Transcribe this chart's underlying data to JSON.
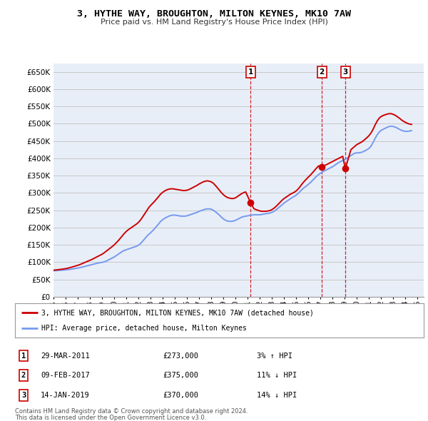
{
  "title": "3, HYTHE WAY, BROUGHTON, MILTON KEYNES, MK10 7AW",
  "subtitle": "Price paid vs. HM Land Registry's House Price Index (HPI)",
  "hpi_label": "HPI: Average price, detached house, Milton Keynes",
  "price_label": "3, HYTHE WAY, BROUGHTON, MILTON KEYNES, MK10 7AW (detached house)",
  "footnote1": "Contains HM Land Registry data © Crown copyright and database right 2024.",
  "footnote2": "This data is licensed under the Open Government Licence v3.0.",
  "background_color": "#ffffff",
  "plot_bg_color": "#e8eef8",
  "grid_color": "#c8c8c8",
  "hpi_color": "#7799ee",
  "price_color": "#cc0000",
  "sale_marker_color": "#cc0000",
  "vline_color": "#cc0000",
  "ylim": [
    0,
    675000
  ],
  "yticks": [
    0,
    50000,
    100000,
    150000,
    200000,
    250000,
    300000,
    350000,
    400000,
    450000,
    500000,
    550000,
    600000,
    650000
  ],
  "sales": [
    {
      "label": "1",
      "date": "29-MAR-2011",
      "price": 273000,
      "x_year": 2011.23,
      "hpi_pct": "3% ↑ HPI"
    },
    {
      "label": "2",
      "date": "09-FEB-2017",
      "price": 375000,
      "x_year": 2017.11,
      "hpi_pct": "11% ↓ HPI"
    },
    {
      "label": "3",
      "date": "14-JAN-2019",
      "price": 370000,
      "x_year": 2019.04,
      "hpi_pct": "14% ↓ HPI"
    }
  ],
  "hpi_data_x": [
    1995.0,
    1995.08,
    1995.17,
    1995.25,
    1995.33,
    1995.42,
    1995.5,
    1995.58,
    1995.67,
    1995.75,
    1995.83,
    1995.92,
    1996.0,
    1996.08,
    1996.17,
    1996.25,
    1996.33,
    1996.42,
    1996.5,
    1996.58,
    1996.67,
    1996.75,
    1996.83,
    1996.92,
    1997.0,
    1997.08,
    1997.17,
    1997.25,
    1997.33,
    1997.42,
    1997.5,
    1997.58,
    1997.67,
    1997.75,
    1997.83,
    1997.92,
    1998.0,
    1998.17,
    1998.33,
    1998.5,
    1998.67,
    1998.83,
    1999.0,
    1999.17,
    1999.33,
    1999.5,
    1999.67,
    1999.83,
    2000.0,
    2000.17,
    2000.33,
    2000.5,
    2000.67,
    2000.83,
    2001.0,
    2001.17,
    2001.33,
    2001.5,
    2001.67,
    2001.83,
    2002.0,
    2002.17,
    2002.33,
    2002.5,
    2002.67,
    2002.83,
    2003.0,
    2003.17,
    2003.33,
    2003.5,
    2003.67,
    2003.83,
    2004.0,
    2004.17,
    2004.33,
    2004.5,
    2004.67,
    2004.83,
    2005.0,
    2005.17,
    2005.33,
    2005.5,
    2005.67,
    2005.83,
    2006.0,
    2006.17,
    2006.33,
    2006.5,
    2006.67,
    2006.83,
    2007.0,
    2007.17,
    2007.33,
    2007.5,
    2007.67,
    2007.83,
    2008.0,
    2008.17,
    2008.33,
    2008.5,
    2008.67,
    2008.83,
    2009.0,
    2009.17,
    2009.33,
    2009.5,
    2009.67,
    2009.83,
    2010.0,
    2010.17,
    2010.33,
    2010.5,
    2010.67,
    2010.83,
    2011.0,
    2011.17,
    2011.33,
    2011.5,
    2011.67,
    2011.83,
    2012.0,
    2012.17,
    2012.33,
    2012.5,
    2012.67,
    2012.83,
    2013.0,
    2013.17,
    2013.33,
    2013.5,
    2013.67,
    2013.83,
    2014.0,
    2014.17,
    2014.33,
    2014.5,
    2014.67,
    2014.83,
    2015.0,
    2015.17,
    2015.33,
    2015.5,
    2015.67,
    2015.83,
    2016.0,
    2016.17,
    2016.33,
    2016.5,
    2016.67,
    2016.83,
    2017.0,
    2017.17,
    2017.33,
    2017.5,
    2017.67,
    2017.83,
    2018.0,
    2018.17,
    2018.33,
    2018.5,
    2018.67,
    2018.83,
    2019.0,
    2019.17,
    2019.33,
    2019.5,
    2019.67,
    2019.83,
    2020.0,
    2020.17,
    2020.33,
    2020.5,
    2020.67,
    2020.83,
    2021.0,
    2021.17,
    2021.33,
    2021.5,
    2021.67,
    2021.83,
    2022.0,
    2022.17,
    2022.33,
    2022.5,
    2022.67,
    2022.83,
    2023.0,
    2023.17,
    2023.33,
    2023.5,
    2023.67,
    2023.83,
    2024.0,
    2024.17,
    2024.33,
    2024.5
  ],
  "hpi_data_y": [
    75000,
    75200,
    75400,
    75600,
    75800,
    76000,
    76200,
    76500,
    76800,
    77000,
    77200,
    77500,
    77800,
    78100,
    78400,
    78700,
    79000,
    79500,
    80000,
    80500,
    81000,
    81500,
    82000,
    82500,
    83000,
    83500,
    84200,
    85000,
    85800,
    86500,
    87200,
    88000,
    88800,
    89500,
    90200,
    91000,
    91800,
    93000,
    94500,
    96000,
    97500,
    98500,
    99500,
    101000,
    103000,
    106000,
    109000,
    112000,
    115000,
    119000,
    123000,
    127000,
    131000,
    134000,
    136000,
    138000,
    140000,
    142000,
    144000,
    146000,
    149000,
    154000,
    160000,
    167000,
    174000,
    180000,
    185000,
    191000,
    197000,
    204000,
    211000,
    218000,
    223000,
    227000,
    230000,
    233000,
    235000,
    236000,
    236000,
    235000,
    234000,
    233000,
    233000,
    233000,
    234000,
    236000,
    238000,
    240000,
    242000,
    244000,
    247000,
    249000,
    251000,
    253000,
    254000,
    254000,
    253000,
    250000,
    246000,
    241000,
    236000,
    230000,
    225000,
    221000,
    219000,
    218000,
    218000,
    219000,
    221000,
    224000,
    227000,
    230000,
    232000,
    233000,
    234000,
    235000,
    236000,
    237000,
    237000,
    237000,
    237000,
    238000,
    239000,
    240000,
    241000,
    242000,
    244000,
    247000,
    251000,
    256000,
    261000,
    266000,
    271000,
    275000,
    279000,
    283000,
    287000,
    290000,
    294000,
    299000,
    305000,
    311000,
    316000,
    320000,
    325000,
    330000,
    336000,
    342000,
    348000,
    353000,
    357000,
    361000,
    364000,
    367000,
    370000,
    373000,
    376000,
    380000,
    384000,
    388000,
    391000,
    394000,
    397000,
    400000,
    404000,
    408000,
    412000,
    415000,
    416000,
    416000,
    417000,
    419000,
    422000,
    425000,
    429000,
    436000,
    446000,
    458000,
    468000,
    476000,
    481000,
    484000,
    487000,
    490000,
    492000,
    493000,
    492000,
    490000,
    487000,
    484000,
    481000,
    479000,
    478000,
    478000,
    479000,
    480000
  ],
  "price_data_x": [
    1995.0,
    1995.08,
    1995.17,
    1995.25,
    1995.33,
    1995.42,
    1995.5,
    1995.58,
    1995.67,
    1995.75,
    1995.83,
    1995.92,
    1996.0,
    1996.17,
    1996.33,
    1996.5,
    1996.67,
    1996.83,
    1997.0,
    1997.17,
    1997.33,
    1997.5,
    1997.67,
    1997.83,
    1998.0,
    1998.17,
    1998.33,
    1998.5,
    1998.67,
    1998.83,
    1999.0,
    1999.17,
    1999.33,
    1999.5,
    1999.67,
    1999.83,
    2000.0,
    2000.17,
    2000.33,
    2000.5,
    2000.67,
    2000.83,
    2001.0,
    2001.17,
    2001.33,
    2001.5,
    2001.67,
    2001.83,
    2002.0,
    2002.17,
    2002.33,
    2002.5,
    2002.67,
    2002.83,
    2003.0,
    2003.17,
    2003.33,
    2003.5,
    2003.67,
    2003.83,
    2004.0,
    2004.17,
    2004.33,
    2004.5,
    2004.67,
    2004.83,
    2005.0,
    2005.17,
    2005.33,
    2005.5,
    2005.67,
    2005.83,
    2006.0,
    2006.17,
    2006.33,
    2006.5,
    2006.67,
    2006.83,
    2007.0,
    2007.17,
    2007.33,
    2007.5,
    2007.67,
    2007.83,
    2008.0,
    2008.17,
    2008.33,
    2008.5,
    2008.67,
    2008.83,
    2009.0,
    2009.17,
    2009.33,
    2009.5,
    2009.67,
    2009.83,
    2010.0,
    2010.17,
    2010.33,
    2010.5,
    2010.67,
    2010.83,
    2011.23,
    2011.5,
    2011.67,
    2011.83,
    2012.0,
    2012.17,
    2012.33,
    2012.5,
    2012.67,
    2012.83,
    2013.0,
    2013.17,
    2013.33,
    2013.5,
    2013.67,
    2013.83,
    2014.0,
    2014.17,
    2014.33,
    2014.5,
    2014.67,
    2014.83,
    2015.0,
    2015.17,
    2015.33,
    2015.5,
    2015.67,
    2015.83,
    2016.0,
    2016.17,
    2016.33,
    2016.5,
    2016.67,
    2016.83,
    2017.11,
    2017.5,
    2017.67,
    2017.83,
    2018.0,
    2018.17,
    2018.33,
    2018.5,
    2018.67,
    2018.83,
    2019.04,
    2019.5,
    2019.67,
    2019.83,
    2020.0,
    2020.17,
    2020.33,
    2020.5,
    2020.67,
    2020.83,
    2021.0,
    2021.17,
    2021.33,
    2021.5,
    2021.67,
    2021.83,
    2022.0,
    2022.17,
    2022.33,
    2022.5,
    2022.67,
    2022.83,
    2023.0,
    2023.17,
    2023.33,
    2023.5,
    2023.67,
    2023.83,
    2024.0,
    2024.17,
    2024.33,
    2024.5
  ],
  "price_data_y": [
    77000,
    77200,
    77500,
    77800,
    78100,
    78400,
    78800,
    79200,
    79600,
    80000,
    80400,
    80900,
    81400,
    82500,
    84000,
    85700,
    87400,
    89100,
    91000,
    93000,
    95500,
    98000,
    100500,
    103000,
    105500,
    108000,
    111000,
    114000,
    117000,
    120000,
    123000,
    127000,
    131500,
    136000,
    140500,
    145000,
    150000,
    156000,
    162000,
    169000,
    176000,
    183000,
    189000,
    194000,
    198000,
    202000,
    206000,
    210000,
    215000,
    222000,
    230000,
    239000,
    248000,
    257000,
    264000,
    270000,
    276000,
    283000,
    290000,
    297000,
    302000,
    306000,
    309000,
    311000,
    312000,
    312000,
    311000,
    310000,
    309000,
    308000,
    307000,
    307000,
    308000,
    310000,
    313000,
    316000,
    319000,
    322000,
    326000,
    329000,
    332000,
    334000,
    335000,
    334000,
    332000,
    328000,
    322000,
    315000,
    308000,
    301000,
    295000,
    290000,
    287000,
    285000,
    284000,
    284000,
    286000,
    290000,
    294000,
    298000,
    301000,
    303000,
    273000,
    255000,
    252000,
    250000,
    248000,
    247000,
    247000,
    247000,
    248000,
    249000,
    252000,
    256000,
    261000,
    267000,
    273000,
    279000,
    284000,
    288000,
    292000,
    296000,
    299000,
    302000,
    306000,
    312000,
    319000,
    327000,
    334000,
    340000,
    346000,
    352000,
    358000,
    365000,
    372000,
    378000,
    375000,
    382000,
    385000,
    388000,
    391000,
    394000,
    397000,
    400000,
    403000,
    406000,
    370000,
    425000,
    430000,
    435000,
    440000,
    443000,
    446000,
    450000,
    455000,
    460000,
    466000,
    474000,
    484000,
    497000,
    508000,
    516000,
    521000,
    524000,
    526000,
    528000,
    529000,
    529000,
    527000,
    524000,
    520000,
    516000,
    511000,
    507000,
    504000,
    501000,
    499000,
    498000
  ],
  "xlim": [
    1995,
    2025.5
  ],
  "xticks": [
    1995,
    1996,
    1997,
    1998,
    1999,
    2000,
    2001,
    2002,
    2003,
    2004,
    2005,
    2006,
    2007,
    2008,
    2009,
    2010,
    2011,
    2012,
    2013,
    2014,
    2015,
    2016,
    2017,
    2018,
    2019,
    2020,
    2021,
    2022,
    2023,
    2024,
    2025
  ]
}
